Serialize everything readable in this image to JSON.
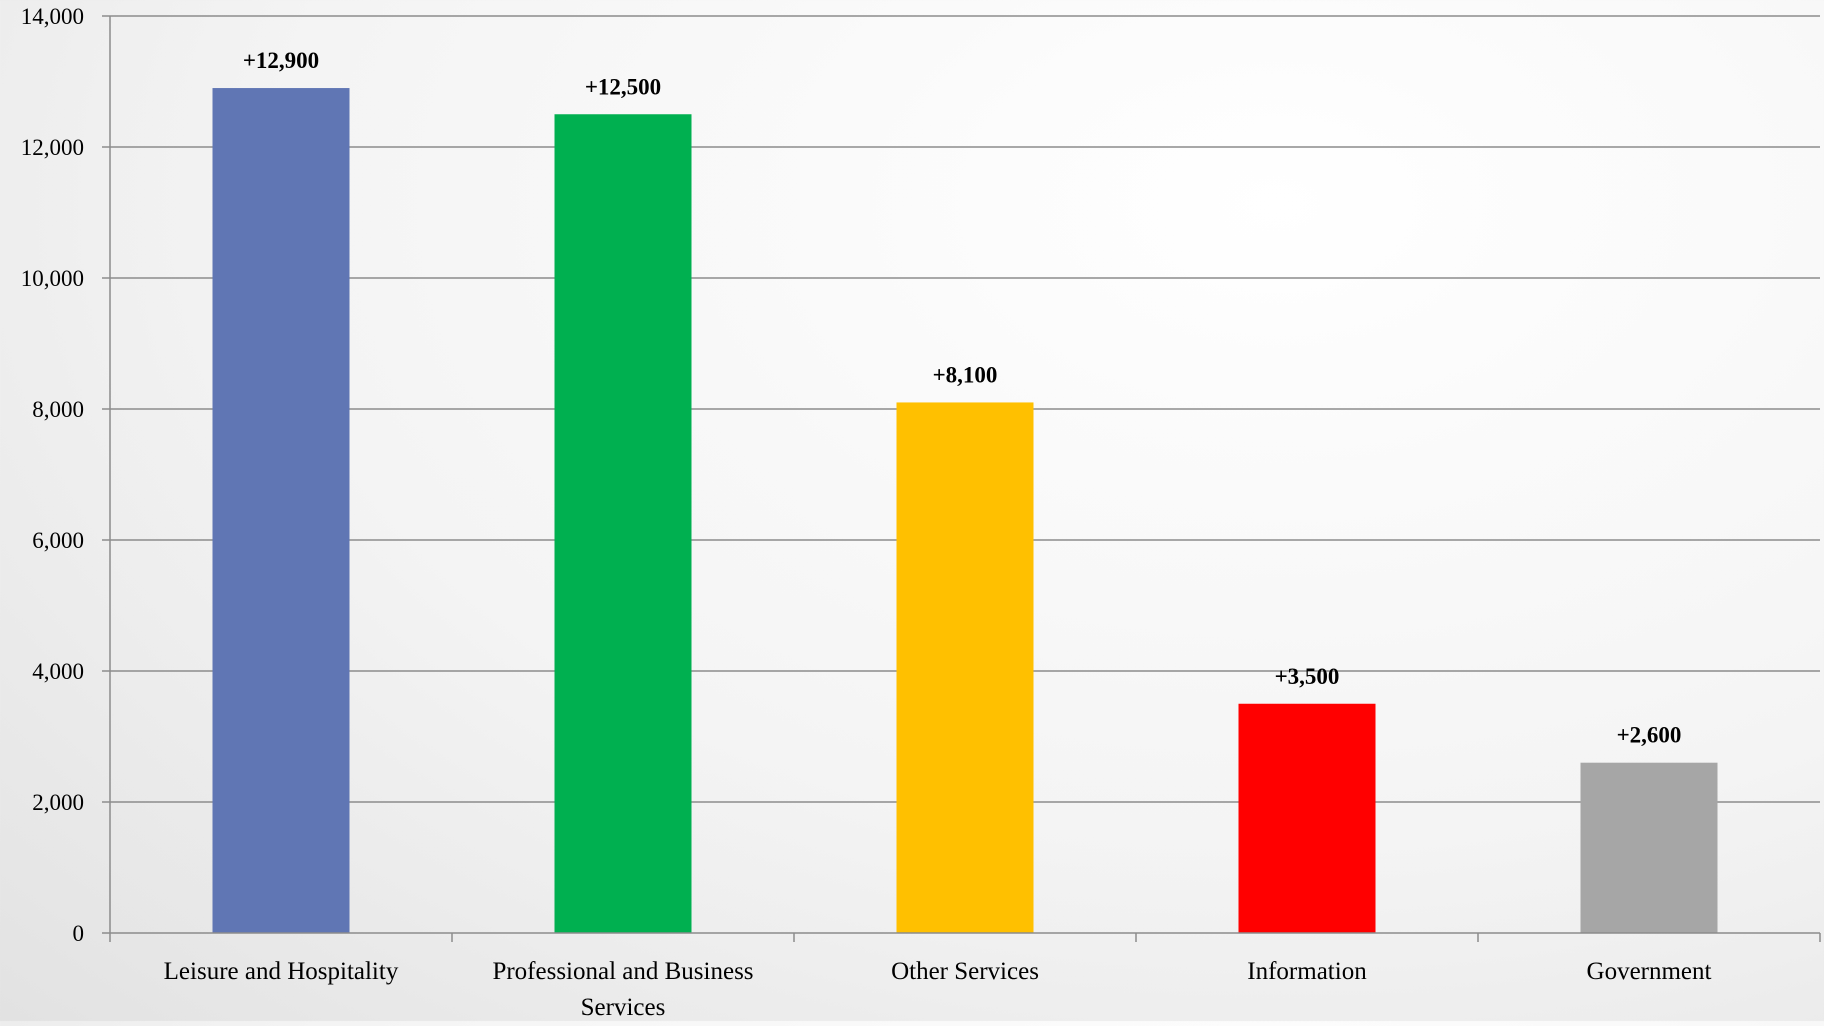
{
  "chart_data": {
    "type": "bar",
    "title": "",
    "xlabel": "",
    "ylabel": "",
    "categories": [
      [
        "Leisure and Hospitality"
      ],
      [
        "Professional and Business",
        "Services"
      ],
      [
        "Other Services"
      ],
      [
        "Information"
      ],
      [
        "Government"
      ]
    ],
    "values": [
      12900,
      12500,
      8100,
      3500,
      2600
    ],
    "data_labels": [
      "+12,900",
      "+12,500",
      "+8,100",
      "+3,500",
      "+2,600"
    ],
    "colors": [
      "#6076B4",
      "#00B050",
      "#FFC000",
      "#FF0000",
      "#A6A6A6"
    ],
    "ylim": [
      0,
      14000
    ],
    "yticks": [
      0,
      2000,
      4000,
      6000,
      8000,
      10000,
      12000,
      14000
    ],
    "ytick_labels": [
      "0",
      "2,000",
      "4,000",
      "6,000",
      "8,000",
      "10,000",
      "12,000",
      "14,000"
    ],
    "grid": true,
    "legend": "none"
  }
}
